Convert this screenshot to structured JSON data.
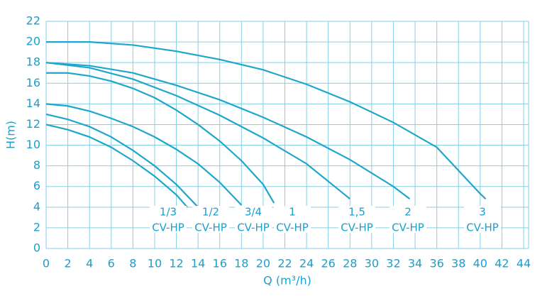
{
  "chart_data": {
    "type": "line",
    "x_label": "Q (m³/h)",
    "y_label": "H(m)",
    "xlim": [
      0,
      44
    ],
    "ylim": [
      0,
      22
    ],
    "xticks": [
      0,
      2,
      4,
      6,
      8,
      10,
      12,
      14,
      16,
      18,
      20,
      22,
      24,
      26,
      28,
      30,
      32,
      34,
      36,
      38,
      40,
      42,
      44
    ],
    "yticks": [
      0,
      2,
      4,
      6,
      8,
      10,
      12,
      14,
      16,
      18,
      20,
      22
    ],
    "grid": true,
    "color": "#1ea6cc",
    "series": [
      {
        "name": "1/3",
        "model": "CV-HP",
        "x": [
          0,
          2,
          4,
          6,
          8,
          10,
          12,
          13
        ],
        "values": [
          12,
          11.5,
          10.8,
          9.8,
          8.5,
          7,
          5.2,
          4
        ]
      },
      {
        "name": "1/2",
        "model": "CV-HP",
        "x": [
          0,
          2,
          4,
          6,
          8,
          10,
          12,
          14
        ],
        "values": [
          13,
          12.5,
          11.8,
          10.8,
          9.5,
          8,
          6.2,
          4
        ]
      },
      {
        "name": "3/4",
        "model": "CV-HP",
        "x": [
          0,
          2,
          4,
          6,
          8,
          10,
          12,
          14,
          16,
          18
        ],
        "values": [
          14,
          13.8,
          13.3,
          12.6,
          11.8,
          10.8,
          9.6,
          8.2,
          6.4,
          4.2
        ]
      },
      {
        "name": "1",
        "model": "CV-HP",
        "x": [
          0,
          2,
          4,
          6,
          8,
          10,
          12,
          14,
          16,
          18,
          20,
          21
        ],
        "values": [
          17,
          17,
          16.7,
          16.2,
          15.5,
          14.6,
          13.4,
          12,
          10.4,
          8.5,
          6.2,
          4.4
        ]
      },
      {
        "name": "1,5",
        "model": "CV-HP",
        "x": [
          0,
          4,
          8,
          12,
          16,
          20,
          24,
          28
        ],
        "values": [
          18,
          17.5,
          16.4,
          14.8,
          12.9,
          10.7,
          8.2,
          4.8
        ]
      },
      {
        "name": "2",
        "model": "CV-HP",
        "x": [
          0,
          4,
          8,
          12,
          16,
          20,
          24,
          28,
          32,
          33.5
        ],
        "values": [
          18,
          17.7,
          17,
          15.8,
          14.4,
          12.7,
          10.8,
          8.6,
          6,
          4.8
        ]
      },
      {
        "name": "3",
        "model": "CV-HP",
        "x": [
          0,
          4,
          8,
          12,
          16,
          20,
          24,
          28,
          32,
          36,
          40,
          40.5
        ],
        "values": [
          20,
          20,
          19.7,
          19.1,
          18.3,
          17.3,
          15.9,
          14.2,
          12.2,
          9.8,
          5.3,
          4.8
        ]
      }
    ]
  }
}
